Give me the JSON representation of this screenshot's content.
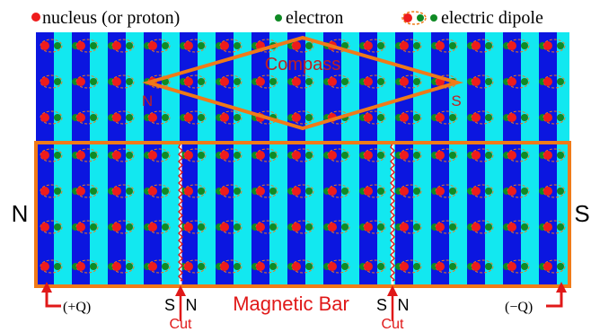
{
  "legend": {
    "nucleus_label": "nucleus (or proton)",
    "electron_label": "electron",
    "dipole_label": "electric dipole"
  },
  "compass": {
    "label": "Compass",
    "north_label": "N",
    "south_label": "S"
  },
  "bar": {
    "label": "Magnetic Bar",
    "north_label": "N",
    "south_label": "S",
    "left_charge": "(+Q)",
    "right_charge": "(−Q)"
  },
  "cuts": [
    {
      "south": "S",
      "north": "N",
      "label": "Cut"
    },
    {
      "south": "S",
      "north": "N",
      "label": "Cut"
    }
  ],
  "colors": {
    "stripe_dark": "#0b16e0",
    "stripe_light": "#12e8f0",
    "nucleus": "#ee1c1c",
    "electron": "#0f8a24",
    "outline": "#f07a18",
    "label_red": "#e01818",
    "compass_text": "#c02020"
  }
}
